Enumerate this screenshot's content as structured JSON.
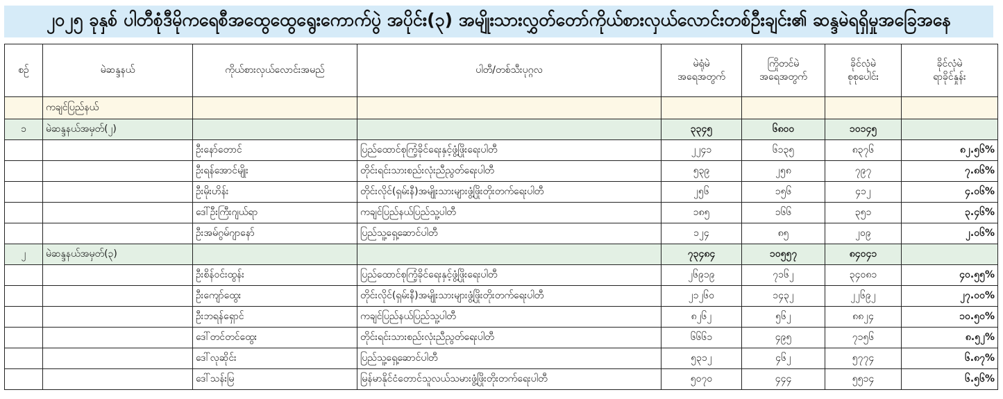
{
  "title": "၂၀၂၅ ခုနှစ် ပါတီစုံဒီမိုကရေစီအထွေထွေရွေးကောက်ပွဲ အပိုင်း(၃) အမျိုးသားလွှတ်တော်ကိုယ်စားလှယ်လောင်းတစ်ဦးချင်း၏ ဆန္ဒမဲရရှိမှုအခြေအနေ",
  "colors": {
    "title_bg": "#d6ebf8",
    "region_bg": "#fdf8e6",
    "group_bg": "#e3f0e4"
  },
  "headers": {
    "no": "စဉ်",
    "constituency": "မဲဆန္ဒနယ်",
    "candidate": "ကိုယ်စားလှယ်လောင်းအမည်",
    "party": "ပါတီ/တစ်သီးပုဂ္ဂလ",
    "ordinary_votes": [
      "မဲရုံမဲ",
      "အရေအတွက်"
    ],
    "advance_votes": [
      "ကြိုတင်မဲ",
      "အရေအတွက်"
    ],
    "total_votes": [
      "ခိုင်လုံမဲ",
      "စုစုပေါင်း"
    ],
    "percent": [
      "ခိုင်လုံမဲ",
      "ရာခိုင်နှုန်း"
    ]
  },
  "region": "ကချင်ပြည်နယ်",
  "groups": [
    {
      "no": "၁",
      "constituency": "မဲဆန္ဒနယ်အမှတ်(၂)",
      "ordinary": "၃၃၄၅",
      "advance": "၆၈၀၀",
      "total": "၁၀၁၄၅",
      "rows": [
        {
          "candidate": "ဦးနော်တောင်",
          "party": "ပြည်ထောင်စုကြံ့ခိုင်ရေးနှင့်ဖွံ့ဖြိုးရေးပါတီ",
          "ordinary": "၂၂၄၁",
          "advance": "၆၁၃၅",
          "total": "၈၃၇၆",
          "percent": "၈၂.၅၆%"
        },
        {
          "candidate": "ဦးရန်အောင်မျိုး",
          "party": "တိုင်းရင်းသားစည်းလုံးညီညွတ်ရေးပါတီ",
          "ordinary": "၅၃၉",
          "advance": "၂၅၈",
          "total": "၇၉၇",
          "percent": "၇.၈၆%"
        },
        {
          "candidate": "ဦးမိုးဟိန်း",
          "party": "တိုင်းလိုင်(ရှမ်းနီ)အမျိုးသားများဖွံ့ဖြိုးတိုးတက်ရေးပါတီ",
          "ordinary": "၂၅၆",
          "advance": "၁၅၆",
          "total": "၄၁၂",
          "percent": "၄.၀၆%"
        },
        {
          "candidate": "ဒေါ်ဦးကြီးဂျယ်ရာ",
          "party": "ကချင်ပြည်နယ်ပြည်သူ့ပါတီ",
          "ordinary": "၁၈၅",
          "advance": "၁၆၆",
          "total": "၃၅၁",
          "percent": "၃.၄၆%"
        },
        {
          "candidate": "ဦးအမ်ဂွမ်ဂျာနော်",
          "party": "ပြည်သူ့ရှေ့ဆောင်ပါတီ",
          "ordinary": "၁၂၄",
          "advance": "၈၅",
          "total": "၂၀၉",
          "percent": "၂.၀၆%"
        }
      ]
    },
    {
      "no": "၂",
      "constituency": "မဲဆန္ဒနယ်အမှတ်(၃)",
      "ordinary": "၇၃၄၈၄",
      "advance": "၁၀၅၅၇",
      "total": "၈၄၀၄၁",
      "rows": [
        {
          "candidate": "ဦးစိန်ဝင်းထွန်း",
          "party": "ပြည်ထောင်စုကြံ့ခိုင်ရေးနှင့်ဖွံ့ဖြိုးရေးပါတီ",
          "ordinary": "၂၆၉၁၉",
          "advance": "၇၁၆၂",
          "total": "၃၄၀၈၁",
          "percent": "၄၀.၅၅%"
        },
        {
          "candidate": "ဦးကျော်ထွေး",
          "party": "တိုင်းလိုင်(ရှမ်းနီ)အမျိုးသားများဖွံ့ဖြိုးတိုးတက်ရေးပါတီ",
          "ordinary": "၂၁၂၆၀",
          "advance": "၁၄၃၂",
          "total": "၂၂၆၉၂",
          "percent": "၂၇.၀၀%"
        },
        {
          "candidate": "ဦးဘရန်ရှောင်",
          "party": "ကချင်ပြည်နယ်ပြည်သူ့ပါတီ",
          "ordinary": "၈၂၆၂",
          "advance": "၅၆၂",
          "total": "၈၈၂၄",
          "percent": "၁၀.၅၀%"
        },
        {
          "candidate": "ဒေါ်တင်တင်ထွေး",
          "party": "တိုင်းရင်းသားစည်းလုံးညီညွတ်ရေးပါတီ",
          "ordinary": "၆၆၆၁",
          "advance": "၄၉၅",
          "total": "၇၁၅၆",
          "percent": "၈.၅၂%"
        },
        {
          "candidate": "ဒေါ်လုဆိုင်း",
          "party": "ပြည်သူ့ရှေ့ဆောင်ပါတီ",
          "ordinary": "၅၃၁၂",
          "advance": "၄၆၂",
          "total": "၅၇၇၄",
          "percent": "၆.၈၇%"
        },
        {
          "candidate": "ဒေါ်သန်းမြ",
          "party": "မြန်မာနိုင်ငံတောင်သူလယ်သမားဖွံ့ဖြိုးတိုးတက်ရေးပါတီ",
          "ordinary": "၅၀၇၀",
          "advance": "၄၄၄",
          "total": "၅၅၁၄",
          "percent": "၆.၅၆%"
        }
      ]
    }
  ]
}
